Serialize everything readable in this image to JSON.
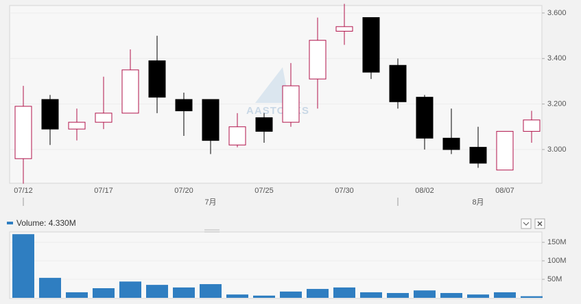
{
  "chart_data": [
    {
      "type": "candlestick",
      "categories": [
        "07/12",
        null,
        null,
        "07/17",
        null,
        null,
        "07/20",
        null,
        null,
        "07/25",
        null,
        null,
        "07/30",
        null,
        null,
        "08/02",
        null,
        null,
        "08/07",
        null
      ],
      "open": [
        2.96,
        3.22,
        3.09,
        3.12,
        3.16,
        3.39,
        3.22,
        3.22,
        3.02,
        3.14,
        3.12,
        3.31,
        3.52,
        3.58,
        3.37,
        3.23,
        3.05,
        3.01,
        2.91,
        3.08
      ],
      "high": [
        3.28,
        3.24,
        3.18,
        3.32,
        3.44,
        3.5,
        3.25,
        3.22,
        3.16,
        3.16,
        3.38,
        3.58,
        3.64,
        3.58,
        3.4,
        3.24,
        3.18,
        3.1,
        3.08,
        3.17
      ],
      "low": [
        2.85,
        3.02,
        3.04,
        3.09,
        3.16,
        3.16,
        3.06,
        2.98,
        3.01,
        3.03,
        3.1,
        3.18,
        3.46,
        3.31,
        3.18,
        3.0,
        2.98,
        2.92,
        2.91,
        3.03
      ],
      "close": [
        3.19,
        3.09,
        3.12,
        3.16,
        3.35,
        3.23,
        3.17,
        3.04,
        3.1,
        3.08,
        3.28,
        3.48,
        3.54,
        3.34,
        3.21,
        3.05,
        3.0,
        2.94,
        3.08,
        3.13
      ],
      "up_color": "#b0124a",
      "down_color": "#000000",
      "ylim": [
        2.852,
        3.633
      ],
      "yticks": [
        {
          "value": 3.0,
          "label": "3.000"
        },
        {
          "value": 3.2,
          "label": "3.200"
        },
        {
          "value": 3.4,
          "label": "3.400"
        },
        {
          "value": 3.6,
          "label": "3.600"
        }
      ],
      "month_labels": [
        "7月",
        "8月"
      ],
      "watermark": "AASTOCKS"
    },
    {
      "type": "bar",
      "legend": "Volume: 4.330M",
      "values": [
        172,
        54,
        15,
        26,
        44,
        35,
        28,
        37,
        9,
        6,
        17,
        24,
        28,
        15,
        13,
        20,
        13,
        9,
        15,
        4.33
      ],
      "color": "#2f7ec1",
      "ylim": [
        0,
        178
      ],
      "yticks": [
        {
          "value": 50,
          "label": "50M"
        },
        {
          "value": 100,
          "label": "100M"
        },
        {
          "value": 150,
          "label": "150M"
        }
      ]
    }
  ]
}
